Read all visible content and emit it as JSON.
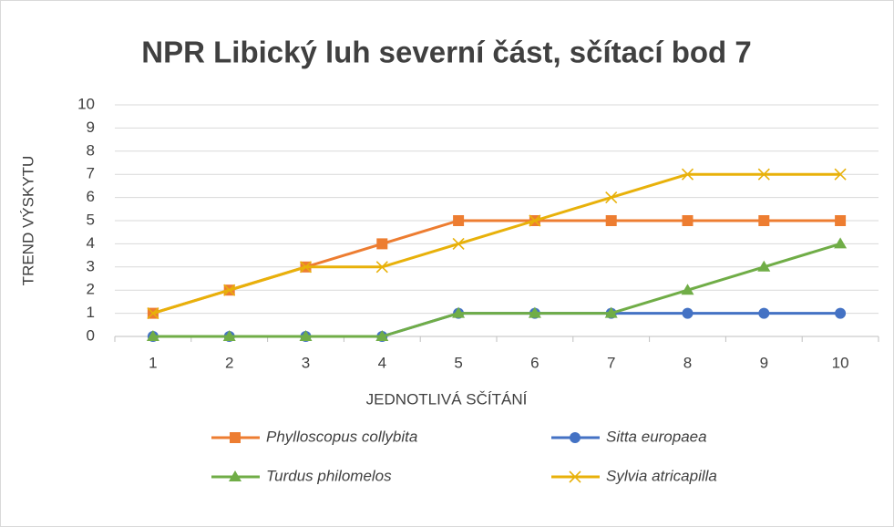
{
  "chart_data": {
    "type": "line",
    "title": "NPR Libický luh severní část, sčítací bod 7",
    "xlabel": "JEDNOTLIVÁ SČÍTÁNÍ",
    "ylabel": "TREND VÝSKYTU",
    "categories": [
      1,
      2,
      3,
      4,
      5,
      6,
      7,
      8,
      9,
      10
    ],
    "series": [
      {
        "name": "Phylloscopus collybita",
        "color": "#ED7D31",
        "marker": "square",
        "values": [
          1,
          2,
          3,
          4,
          5,
          5,
          5,
          5,
          5,
          5
        ]
      },
      {
        "name": "Sitta europaea",
        "color": "#4472C4",
        "marker": "circle",
        "values": [
          0,
          0,
          0,
          0,
          1,
          1,
          1,
          1,
          1,
          1
        ]
      },
      {
        "name": "Turdus philomelos",
        "color": "#70AD47",
        "marker": "triangle",
        "values": [
          0,
          0,
          0,
          0,
          1,
          1,
          1,
          2,
          3,
          4
        ]
      },
      {
        "name": "Sylvia atricapilla",
        "color": "#E8B10A",
        "marker": "x",
        "values": [
          1,
          2,
          3,
          3,
          4,
          5,
          6,
          7,
          7,
          7
        ]
      }
    ],
    "ylim": [
      0,
      10
    ],
    "yticks": [
      0,
      1,
      2,
      3,
      4,
      5,
      6,
      7,
      8,
      9,
      10
    ],
    "grid": true,
    "legend": "bottom"
  }
}
